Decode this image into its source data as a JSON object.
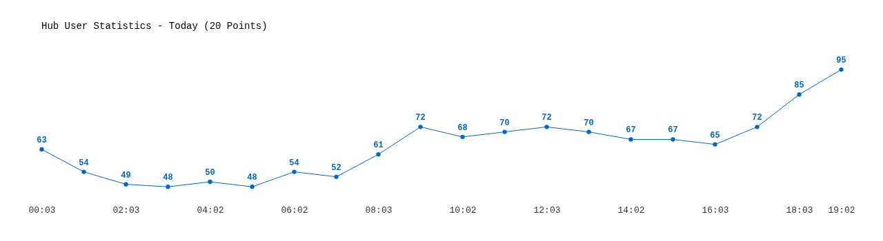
{
  "chart_data": {
    "type": "line",
    "title": "Hub User Statistics - Today (20 Points)",
    "categories": [
      "00:03",
      null,
      "02:03",
      null,
      "04:02",
      null,
      "06:02",
      null,
      "08:03",
      null,
      "10:02",
      null,
      "12:03",
      null,
      "14:02",
      null,
      "16:03",
      null,
      "18:03",
      "19:02"
    ],
    "series": [
      {
        "color": "#0066cc",
        "values": [
          63,
          54,
          49,
          48,
          50,
          48,
          54,
          52,
          61,
          72,
          68,
          70,
          72,
          70,
          67,
          67,
          65,
          72,
          85,
          95
        ]
      }
    ],
    "data_labels": true,
    "marker": "circle",
    "grid": false,
    "tick_labels": "x",
    "line_style": "solid"
  }
}
